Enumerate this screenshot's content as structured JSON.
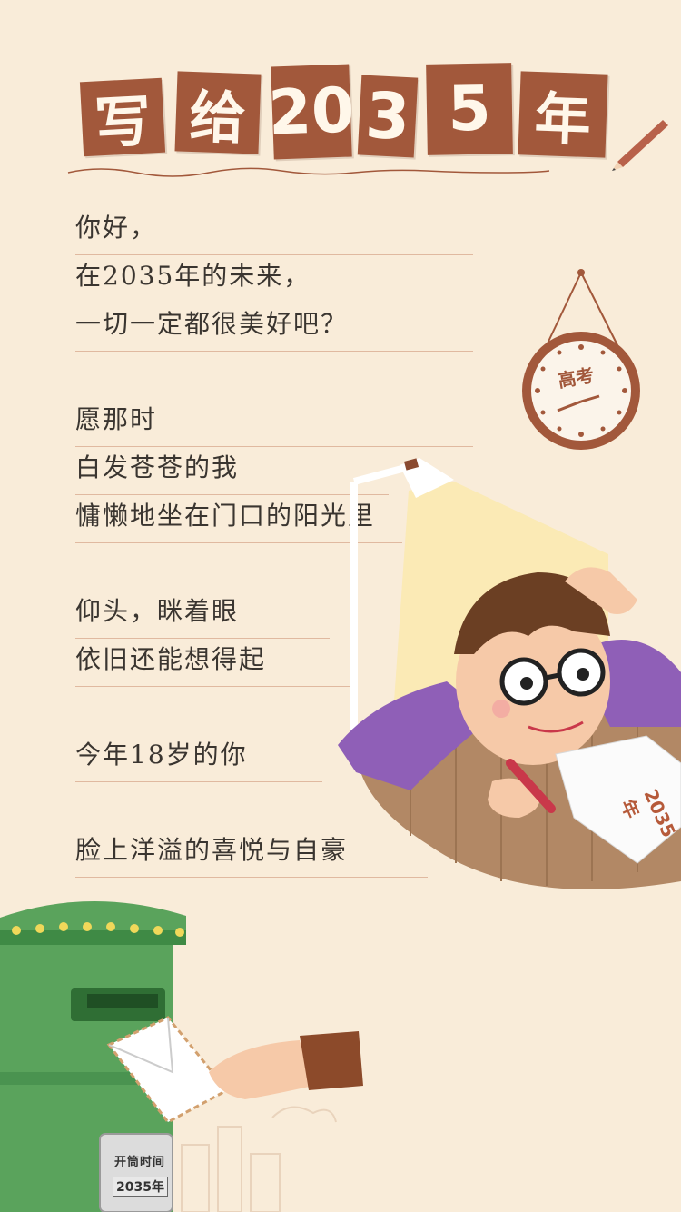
{
  "title": {
    "chars": [
      "写",
      "给",
      "2",
      "0",
      "3",
      "5",
      "年"
    ],
    "tile_color": "#a2583b"
  },
  "poem": {
    "lines": [
      "你好，",
      "在2035年的未来，",
      "一切一定都很美好吧？",
      "愿那时",
      "白发苍苍的我",
      "慵懒地坐在门口的阳光里",
      "仰头，眯着眼",
      "依旧还能想得起",
      "今年18岁的你",
      "脸上洋溢的喜悦与自豪"
    ]
  },
  "clock": {
    "label": "高考"
  },
  "paper": {
    "label": "2035年"
  },
  "mailbox": {
    "label": "开筒时间",
    "year": "2035年"
  },
  "colors": {
    "background": "#f9ecd9",
    "accent": "#a2583b",
    "mailbox": "#5aa35c",
    "shirt": "#8f5fb7"
  }
}
